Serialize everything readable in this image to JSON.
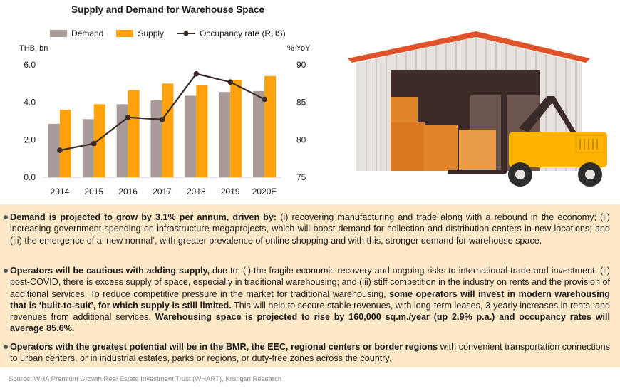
{
  "chart_data": {
    "type": "bar",
    "title": "Supply and Demand for Warehouse Space",
    "categories": [
      "2014",
      "2015",
      "2016",
      "2017",
      "2018",
      "2019",
      "2020E"
    ],
    "series": [
      {
        "name": "Demand",
        "type": "bar",
        "axis": "left",
        "color": "#a89a94",
        "values": [
          2.85,
          3.1,
          3.9,
          4.1,
          4.35,
          4.55,
          4.6
        ]
      },
      {
        "name": "Supply",
        "type": "bar",
        "axis": "left",
        "color": "#ffa10d",
        "values": [
          3.6,
          3.9,
          4.65,
          5.0,
          4.9,
          5.2,
          5.4
        ]
      },
      {
        "name": "Occupancy rate (RHS)",
        "type": "line",
        "axis": "right",
        "color": "#3a2a28",
        "values": [
          78.6,
          79.5,
          83.0,
          82.7,
          88.8,
          87.7,
          85.4
        ]
      }
    ],
    "yLeft": {
      "unit": "THB, bn",
      "min": 0,
      "max": 6,
      "ticks": [
        "0.0",
        "2.0",
        "4.0",
        "6.0"
      ]
    },
    "yRight": {
      "unit": "% YoY",
      "min": 75,
      "max": 90,
      "ticks": [
        "75",
        "80",
        "85",
        "90"
      ]
    },
    "legend_position": "top",
    "grid": false
  },
  "bullets": [
    {
      "segments": [
        {
          "text": "Demand is projected to grow by 3.1% per annum, driven by:",
          "bold": true
        },
        {
          "text": " (i) recovering manufacturing and trade along with a rebound in the economy; (ii) increasing government spending on infrastructure megaprojects, which will boost demand for collection and distribution centers in new locations; and (iii) the emergence of a ‘new normal’, with greater prevalence of online shopping and with this, stronger demand for warehouse space.",
          "bold": false
        }
      ]
    },
    {
      "segments": [
        {
          "text": "Operators will be cautious with adding supply,",
          "bold": true
        },
        {
          "text": " due to: (i) the fragile economic recovery and ongoing risks to international trade and investment; (ii) post-COVID, there is excess supply of space, especially in traditional warehousing; and (iii) stiff competition in the industry on rents and the provision of additional services. To reduce competitive pressure in the market for traditional warehousing, ",
          "bold": false
        },
        {
          "text": "some operators will invest in modern warehousing that is ‘built-to-suit’, for which supply is still limited.",
          "bold": true
        },
        {
          "text": " This will help to secure stable revenues, with long-term leases, 3-yearly increases in rents, and revenues from additional services. ",
          "bold": false
        },
        {
          "text": "Warehousing space is projected to rise by 160,000 sq.m./year (up 2.9% p.a.) and occupancy rates will average 85.6%.",
          "bold": true
        }
      ]
    },
    {
      "segments": [
        {
          "text": "Operators with the greatest potential will be in the BMR, the EEC, regional centers or border regions",
          "bold": true
        },
        {
          "text": " with convenient transportation connections to urban centers, or in industrial estates, parks or regions, or duty-free zones across the country.",
          "bold": false
        }
      ]
    }
  ],
  "source": "Source: WHA Premium Growth Real Estate Investment Trust (WHART), Krungsri Research",
  "illustration": {
    "name": "warehouse-forklift-illustration",
    "roof_color": "#e0522a",
    "forklift_color": "#ffb400"
  }
}
